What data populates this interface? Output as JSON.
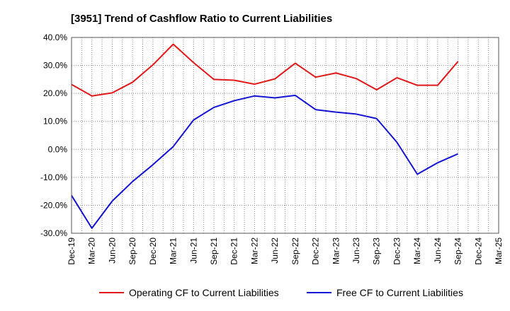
{
  "chart_data": {
    "type": "line",
    "title": "[3951]  Trend of Cashflow Ratio to Current Liabilities",
    "xlabel": "",
    "ylabel": "",
    "categories": [
      "Dec-19",
      "Mar-20",
      "Jun-20",
      "Sep-20",
      "Dec-20",
      "Mar-21",
      "Jun-21",
      "Sep-21",
      "Dec-21",
      "Mar-22",
      "Jun-22",
      "Sep-22",
      "Dec-22",
      "Mar-23",
      "Jun-23",
      "Sep-23",
      "Dec-23",
      "Mar-24",
      "Jun-24",
      "Sep-24",
      "Dec-24",
      "Mar-25"
    ],
    "y_ticks": [
      "40.0%",
      "30.0%",
      "20.0%",
      "10.0%",
      "0.0%",
      "-10.0%",
      "-20.0%",
      "-30.0%"
    ],
    "ylim": [
      -30,
      40
    ],
    "grid": true,
    "legend_position": "bottom",
    "series": [
      {
        "name": "Operating CF to Current Liabilities",
        "color": "#e0191b",
        "values": [
          23.2,
          19.1,
          20.2,
          24.0,
          30.2,
          37.6,
          31.0,
          25.0,
          24.7,
          23.3,
          25.2,
          30.8,
          25.8,
          27.3,
          25.3,
          21.3,
          25.6,
          22.9,
          22.9,
          31.4,
          null,
          null
        ]
      },
      {
        "name": "Free CF to Current Liabilities",
        "color": "#1414d2",
        "values": [
          -16.5,
          -28.2,
          -18.5,
          -11.5,
          -5.5,
          1.0,
          10.5,
          15.0,
          17.4,
          19.1,
          18.4,
          19.3,
          14.2,
          13.3,
          12.6,
          11.0,
          2.5,
          -8.9,
          -4.8,
          -1.6,
          null,
          null
        ]
      }
    ]
  }
}
